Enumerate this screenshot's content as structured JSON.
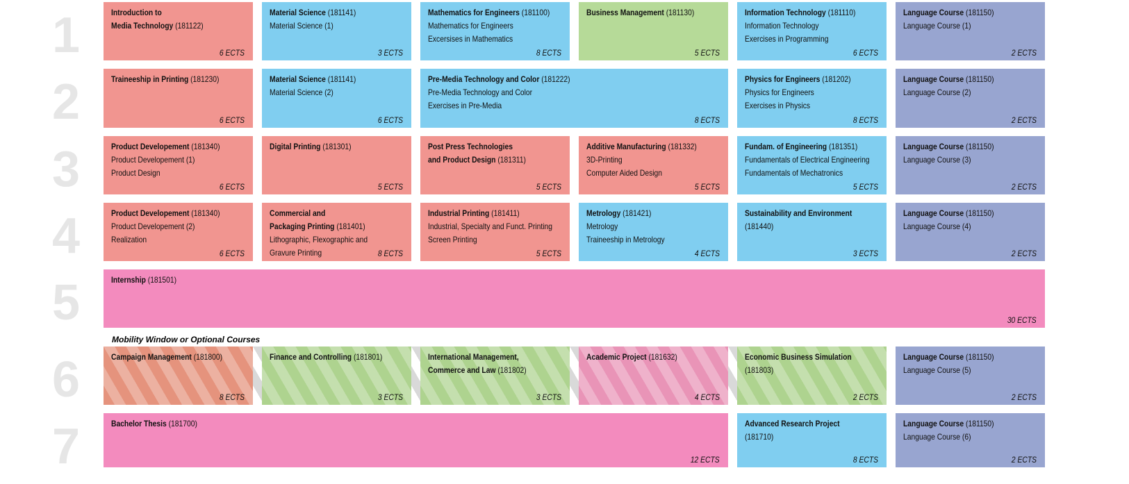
{
  "categories": {
    "red": "#f19590",
    "blue": "#80cef0",
    "green": "#b6da98",
    "purple": "#98a5d0",
    "pink": "#f38bbe",
    "orange_striped": "#e5937d",
    "green_striped": "#aed38f",
    "pink_striped": "#e994b7"
  },
  "row_labels": [
    "1",
    "2",
    "3",
    "4",
    "5",
    "6",
    "7"
  ],
  "mobility_label": "Mobility Window or Optional Courses",
  "semesters": [
    {
      "courses": [
        {
          "title": "Introduction to\nMedia Technology",
          "code": "(181122)",
          "lines": [],
          "ects": "6 ECTS",
          "category": "red"
        },
        {
          "title": "Material Science",
          "code": "(181141)",
          "lines": [
            "Material Science (1)"
          ],
          "ects": "3 ECTS",
          "category": "blue"
        },
        {
          "title": "Mathematics for Engineers",
          "code": "(181100)",
          "lines": [
            "Mathematics for Engineers",
            "Excersises in Mathematics"
          ],
          "ects": "8 ECTS",
          "category": "blue"
        },
        {
          "title": "Business Management",
          "code": "(181130)",
          "lines": [],
          "ects": "5 ECTS",
          "category": "green"
        },
        {
          "title": "Information Technology",
          "code": "(181110)",
          "lines": [
            "Information Technology",
            "Exercises in Programming"
          ],
          "ects": "6 ECTS",
          "category": "blue"
        },
        {
          "title": "Language Course",
          "code": "(181150)",
          "lines": [
            "Language Course (1)"
          ],
          "ects": "2 ECTS",
          "category": "purple"
        }
      ]
    },
    {
      "courses": [
        {
          "title": "Traineeship in Printing",
          "code": "(181230)",
          "lines": [],
          "ects": "6 ECTS",
          "category": "red"
        },
        {
          "title": "Material Science",
          "code": "(181141)",
          "lines": [
            "Material Science (2)"
          ],
          "ects": "6 ECTS",
          "category": "blue"
        },
        {
          "title": "Pre-Media Technology and Color",
          "code": "(181222)",
          "lines": [
            "Pre-Media Technology and Color",
            "Exercises in Pre-Media"
          ],
          "ects": "8 ECTS",
          "category": "blue"
        },
        {
          "title": "Physics for Engineers",
          "code": "(181202)",
          "lines": [
            "Physics for Engineers",
            "Exercises in Physics"
          ],
          "ects": "8 ECTS",
          "category": "blue"
        },
        {
          "title": "Language Course",
          "code": "(181150)",
          "lines": [
            "Language Course (2)"
          ],
          "ects": "2 ECTS",
          "category": "purple"
        }
      ]
    },
    {
      "courses": [
        {
          "title": "Product Developement",
          "code": "(181340)",
          "lines": [
            "Product Developement (1)",
            "Product Design"
          ],
          "ects": "6 ECTS",
          "category": "red"
        },
        {
          "title": "Digital Printing",
          "code": "(181301)",
          "lines": [],
          "ects": "5 ECTS",
          "category": "red"
        },
        {
          "title": "Post Press Technologies\nand Product Design",
          "code": "(181311)",
          "lines": [],
          "ects": "5 ECTS",
          "category": "red"
        },
        {
          "title": "Additive Manufacturing",
          "code": "(181332)",
          "lines": [
            "3D-Printing",
            "Computer Aided Design"
          ],
          "ects": "5 ECTS",
          "category": "red"
        },
        {
          "title": "Fundam. of Engineering",
          "code": "(181351)",
          "lines": [
            "Fundamentals of Electrical Engineering",
            "Fundamentals of Mechatronics"
          ],
          "ects": "5 ECTS",
          "category": "blue"
        },
        {
          "title": "Language Course",
          "code": "(181150)",
          "lines": [
            "Language Course (3)"
          ],
          "ects": "2 ECTS",
          "category": "purple"
        }
      ]
    },
    {
      "courses": [
        {
          "title": "Product Developement",
          "code": "(181340)",
          "lines": [
            "Product Developement (2)",
            "Realization"
          ],
          "ects": "6 ECTS",
          "category": "red"
        },
        {
          "title": "Commercial and\nPackaging Printing",
          "code": "(181401)",
          "lines": [
            "Lithographic, Flexographic and",
            "Gravure Printing"
          ],
          "ects": "8 ECTS",
          "category": "red"
        },
        {
          "title": "Industrial Printing",
          "code": "(181411)",
          "lines": [
            "Industrial, Specialty and Funct. Printing",
            "Screen Printing"
          ],
          "ects": "5 ECTS",
          "category": "red"
        },
        {
          "title": "Metrology",
          "code": "(181421)",
          "lines": [
            "Metrology",
            "Traineeship in Metrology"
          ],
          "ects": "4 ECTS",
          "category": "blue"
        },
        {
          "title": "Sustainability and Environment",
          "code": "\n(181440)",
          "lines": [],
          "ects": "3 ECTS",
          "category": "blue"
        },
        {
          "title": "Language Course",
          "code": "(181150)",
          "lines": [
            "Language Course (4)"
          ],
          "ects": "2 ECTS",
          "category": "purple"
        }
      ]
    },
    {
      "courses": [
        {
          "title": "Internship",
          "code": "(181501)",
          "lines": [],
          "ects": "30 ECTS",
          "category": "pink"
        }
      ]
    },
    {
      "courses": [
        {
          "title": "Campaign Management",
          "code": "(181800)",
          "lines": [],
          "ects": "8 ECTS",
          "category": "orange_striped"
        },
        {
          "title": "Finance and Controlling",
          "code": "(181801)",
          "lines": [],
          "ects": "3 ECTS",
          "category": "green_striped"
        },
        {
          "title": "International Management,\nCommerce and Law",
          "code": "(181802)",
          "lines": [],
          "ects": "3 ECTS",
          "category": "green_striped"
        },
        {
          "title": "Academic Project",
          "code": "(181632)",
          "lines": [],
          "ects": "4 ECTS",
          "category": "pink_striped"
        },
        {
          "title": "Economic Business Simulation",
          "code": "\n(181803)",
          "lines": [],
          "ects": "2 ECTS",
          "category": "green_striped"
        },
        {
          "title": "Language Course",
          "code": "(181150)",
          "lines": [
            "Language Course (5)"
          ],
          "ects": "2 ECTS",
          "category": "purple"
        }
      ]
    },
    {
      "courses": [
        {
          "title": "Bachelor Thesis",
          "code": "(181700)",
          "lines": [],
          "ects": "12 ECTS",
          "category": "pink"
        },
        {
          "title": "Advanced Research Project",
          "code": "\n(181710)",
          "lines": [],
          "ects": "8 ECTS",
          "category": "blue"
        },
        {
          "title": "Language Course",
          "code": "(181150)",
          "lines": [
            "Language Course (6)"
          ],
          "ects": "2 ECTS",
          "category": "purple"
        }
      ]
    }
  ]
}
